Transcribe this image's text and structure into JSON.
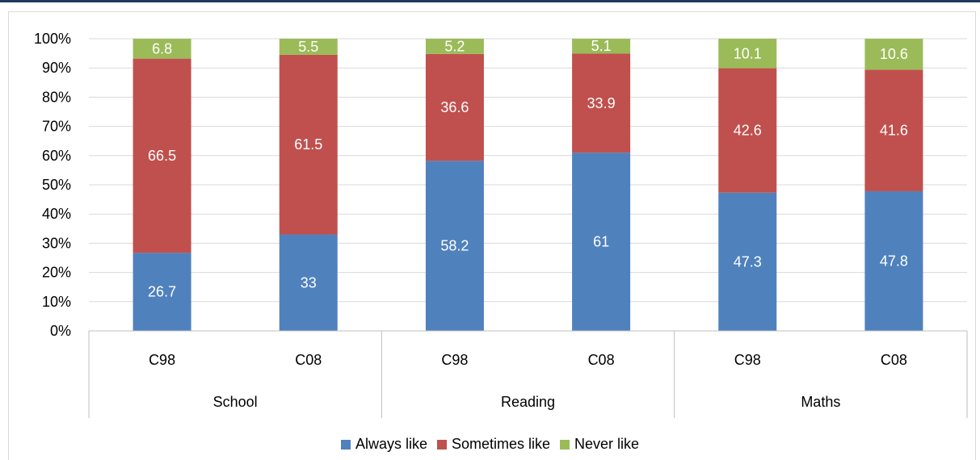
{
  "chart_data": {
    "type": "bar",
    "stacked": true,
    "percent_axis": true,
    "groups": [
      {
        "label": "School",
        "categories": [
          "C98",
          "C08"
        ]
      },
      {
        "label": "Reading",
        "categories": [
          "C98",
          "C08"
        ]
      },
      {
        "label": "Maths",
        "categories": [
          "C98",
          "C08"
        ]
      }
    ],
    "series": [
      {
        "name": "Always like",
        "color": "#4f81bd",
        "values": [
          26.7,
          33,
          58.2,
          61,
          47.3,
          47.8
        ]
      },
      {
        "name": "Sometimes like",
        "color": "#c0504d",
        "values": [
          66.5,
          61.5,
          36.6,
          33.9,
          42.6,
          41.6
        ]
      },
      {
        "name": "Never like",
        "color": "#9bbb59",
        "values": [
          6.8,
          5.5,
          5.2,
          5.1,
          10.1,
          10.6
        ]
      }
    ],
    "ylim": [
      0,
      100
    ],
    "yticks": [
      "0%",
      "10%",
      "20%",
      "30%",
      "40%",
      "50%",
      "60%",
      "70%",
      "80%",
      "90%",
      "100%"
    ],
    "grid": true,
    "legend_position": "bottom",
    "title": "",
    "xlabel": "",
    "ylabel": ""
  }
}
